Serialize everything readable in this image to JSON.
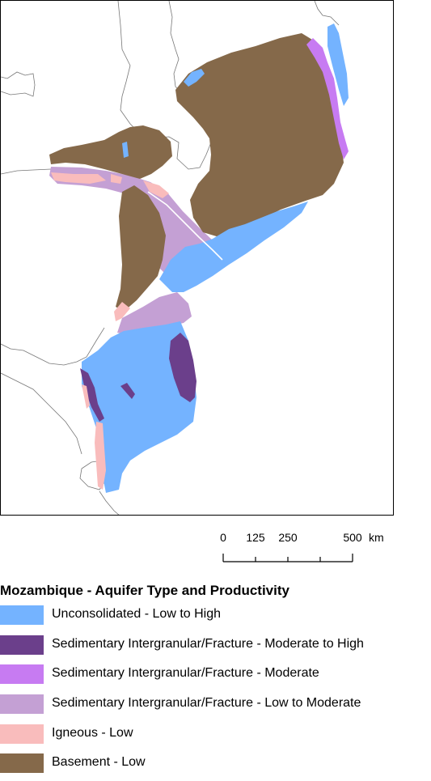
{
  "map": {
    "country": "Mozambique"
  },
  "scalebar": {
    "ticks": [
      "0",
      "125",
      "250",
      "500"
    ],
    "unit": "km"
  },
  "legend": {
    "title": "Mozambique - Aquifer Type and Productivity",
    "items": [
      {
        "label": "Unconsolidated - Low to High",
        "color": "#74b3ff"
      },
      {
        "label": "Sedimentary Intergranular/Fracture - Moderate to High",
        "color": "#6b3f8b"
      },
      {
        "label": "Sedimentary Intergranular/Fracture - Moderate",
        "color": "#c77bf2"
      },
      {
        "label": "Sedimentary Intergranular/Fracture - Low to Moderate",
        "color": "#c4a0d4"
      },
      {
        "label": "Igneous - Low",
        "color": "#f9bcbc"
      },
      {
        "label": "Basement - Low",
        "color": "#85694a"
      }
    ]
  }
}
